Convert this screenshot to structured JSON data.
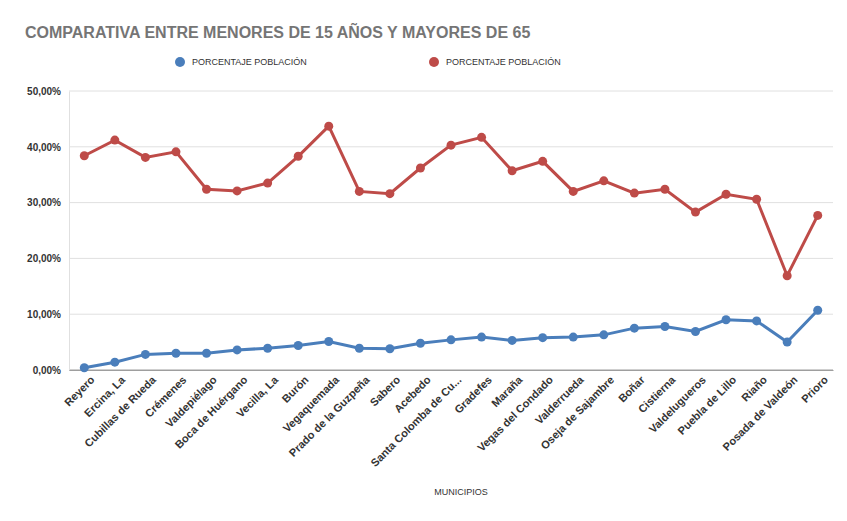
{
  "chart_data": {
    "type": "line",
    "title": "COMPARATIVA ENTRE MENORES DE 15 AÑOS Y MAYORES DE 65",
    "x_label": "MUNICIPIOS",
    "categories": [
      "Reyero",
      "Ercina, La",
      "Cubillas de Rueda",
      "Crémenes",
      "Valdepiélago",
      "Boca de Huérgano",
      "Vecilla, La",
      "Burón",
      "Vegaquemada",
      "Prado de la Guzpeña",
      "Sabero",
      "Acebedo",
      "Santa Colomba de Cu...",
      "Gradefes",
      "Maraña",
      "Vegas del Condado",
      "Valderrueda",
      "Oseja de Sajambre",
      "Boñar",
      "Cistierna",
      "Valdelugueros",
      "Puebla de Lillo",
      "Riaño",
      "Posada de Valdeón",
      "Prioro"
    ],
    "series": [
      {
        "name": "PORCENTAJE POBLACIÓN",
        "color": "#4a7ebb",
        "marker": "circle",
        "line_style": "solid",
        "values": [
          0.4,
          1.4,
          2.8,
          3.0,
          3.0,
          3.6,
          3.9,
          4.4,
          5.1,
          3.9,
          3.8,
          4.8,
          5.4,
          5.9,
          5.3,
          5.8,
          5.9,
          6.3,
          7.5,
          7.8,
          6.9,
          9.0,
          8.8,
          5.0,
          10.7
        ]
      },
      {
        "name": "PORCENTAJE POBLACIÓN",
        "color": "#be4b48",
        "marker": "circle",
        "line_style": "solid",
        "values": [
          38.4,
          41.2,
          38.1,
          39.1,
          32.4,
          32.1,
          33.5,
          38.3,
          43.7,
          32.0,
          31.6,
          36.2,
          40.3,
          41.7,
          35.7,
          37.4,
          32.0,
          33.9,
          31.7,
          32.4,
          28.3,
          31.5,
          30.6,
          16.9,
          27.7
        ]
      }
    ],
    "ylim": [
      0,
      50
    ],
    "yticks": [
      {
        "value": 0,
        "label": "0,00%"
      },
      {
        "value": 10,
        "label": "10,00%"
      },
      {
        "value": 20,
        "label": "20,00%"
      },
      {
        "value": 30,
        "label": "30,00%"
      },
      {
        "value": 40,
        "label": "40,00%"
      },
      {
        "value": 50,
        "label": "50,00%"
      }
    ],
    "grid": true,
    "legend": "top"
  }
}
